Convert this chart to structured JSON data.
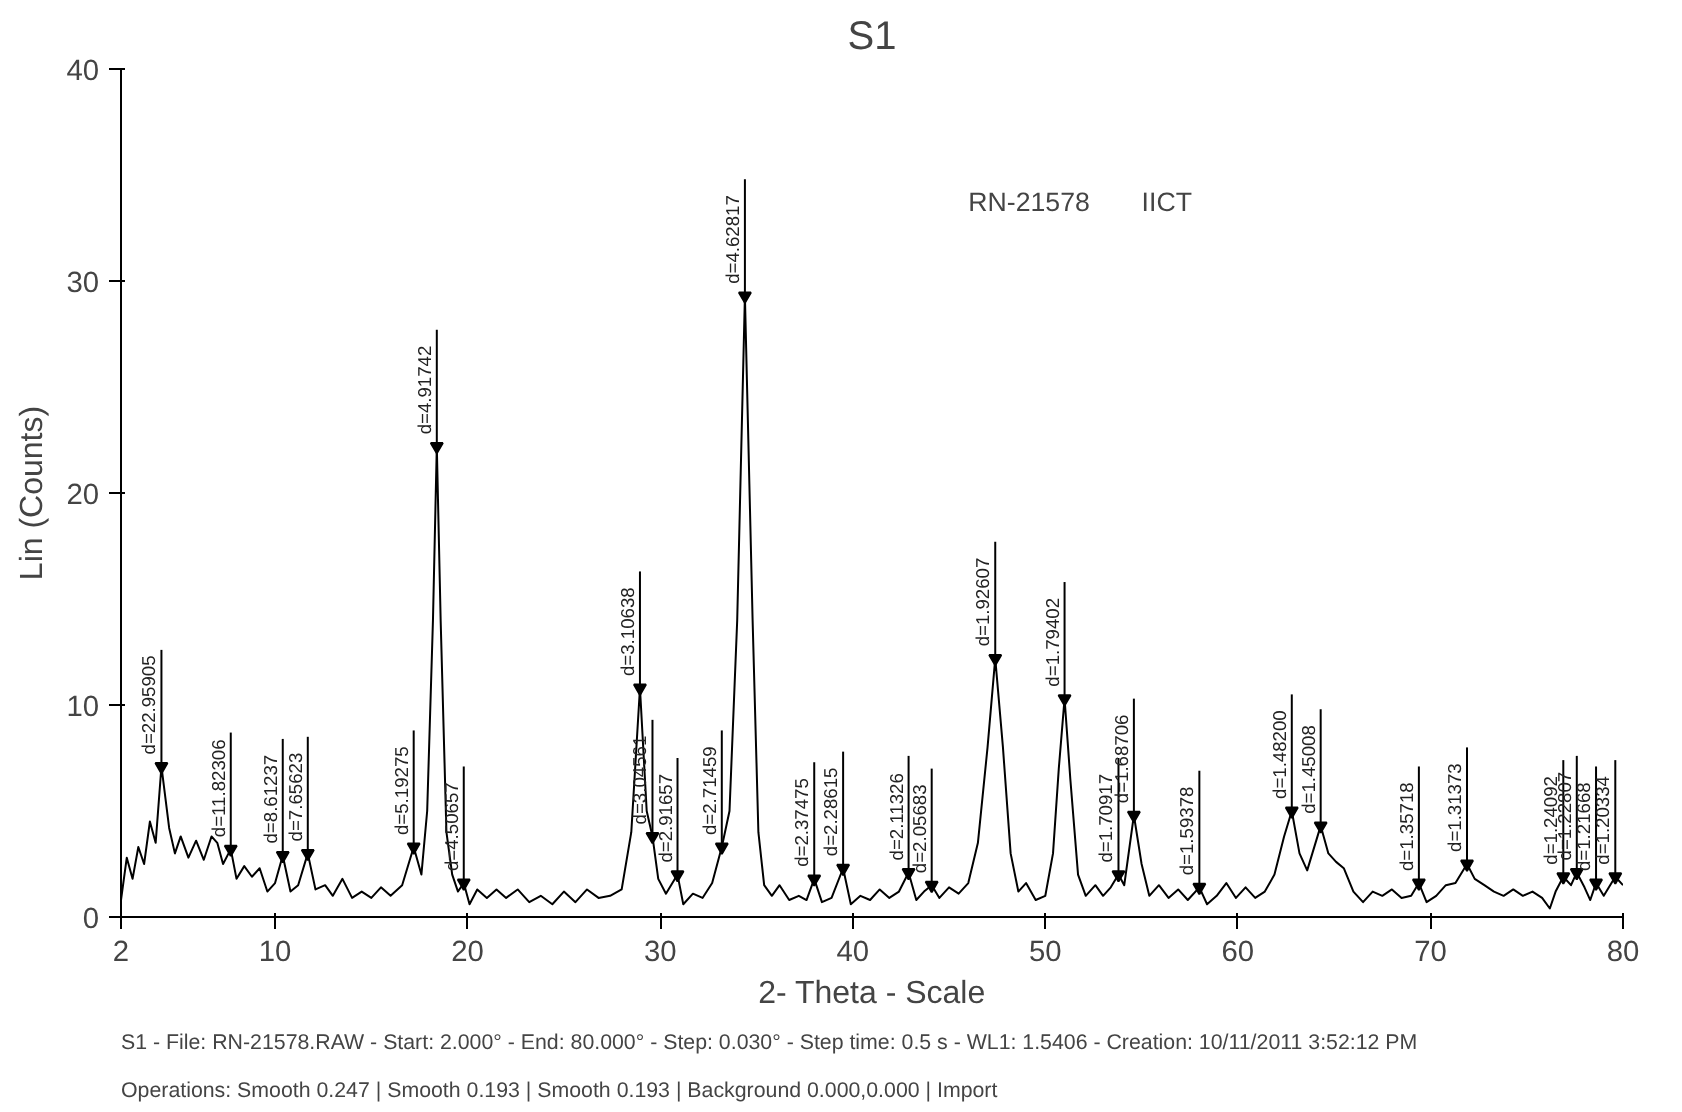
{
  "chart_data": {
    "type": "line",
    "title": "S1",
    "xlabel": "2- Theta - Scale",
    "ylabel": "Lin (Counts)",
    "xlim": [
      2,
      80
    ],
    "xticks": [
      2,
      10,
      20,
      30,
      40,
      50,
      60,
      70,
      80
    ],
    "ylim": [
      0,
      40
    ],
    "yticks": [
      0,
      10,
      20,
      30,
      40
    ],
    "marker": "none",
    "line_style": "solid",
    "series": [
      {
        "color": "#000000",
        "x": [
          2.0,
          2.3,
          2.6,
          2.9,
          3.2,
          3.5,
          3.8,
          4.1,
          4.5,
          4.8,
          5.1,
          5.5,
          5.9,
          6.3,
          6.7,
          7.0,
          7.3,
          7.7,
          8.0,
          8.4,
          8.8,
          9.2,
          9.6,
          10.0,
          10.4,
          10.8,
          11.2,
          11.7,
          12.1,
          12.6,
          13.0,
          13.5,
          14.0,
          14.5,
          15.0,
          15.5,
          16.0,
          16.6,
          17.2,
          17.6,
          17.9,
          18.2,
          18.4,
          18.6,
          18.9,
          19.2,
          19.5,
          19.8,
          20.1,
          20.5,
          21.0,
          21.5,
          22.0,
          22.6,
          23.2,
          23.8,
          24.4,
          25.0,
          25.6,
          26.2,
          26.8,
          27.4,
          28.0,
          28.5,
          28.95,
          29.3,
          29.6,
          29.9,
          30.3,
          30.9,
          31.2,
          31.7,
          32.2,
          32.7,
          33.2,
          33.6,
          34.0,
          34.4,
          34.8,
          35.1,
          35.4,
          35.8,
          36.2,
          36.7,
          37.2,
          37.6,
          38.0,
          38.4,
          38.9,
          39.5,
          39.9,
          40.4,
          40.9,
          41.4,
          41.9,
          42.4,
          42.9,
          43.3,
          43.7,
          44.1,
          44.5,
          45.0,
          45.5,
          46.0,
          46.5,
          47.0,
          47.4,
          47.8,
          48.2,
          48.6,
          49.0,
          49.5,
          50.0,
          50.4,
          50.7,
          51.0,
          51.3,
          51.7,
          52.1,
          52.6,
          53.0,
          53.4,
          53.8,
          54.1,
          54.6,
          55.0,
          55.4,
          55.9,
          56.4,
          56.9,
          57.4,
          58.0,
          58.4,
          58.9,
          59.4,
          59.9,
          60.4,
          60.9,
          61.4,
          61.9,
          62.4,
          62.8,
          63.2,
          63.6,
          64.3,
          64.7,
          65.1,
          65.5,
          66.0,
          66.5,
          67.0,
          67.5,
          68.0,
          68.5,
          69.0,
          69.4,
          69.8,
          70.3,
          70.8,
          71.3,
          71.9,
          72.3,
          72.8,
          73.3,
          73.8,
          74.3,
          74.8,
          75.3,
          75.8,
          76.2,
          76.5,
          76.9,
          77.3,
          77.6,
          78.0,
          78.3,
          78.6,
          79.0,
          79.6,
          80.0
        ],
        "values": [
          0.8,
          2.8,
          1.8,
          3.3,
          2.5,
          4.5,
          3.5,
          7.1,
          4.2,
          3.0,
          3.8,
          2.8,
          3.6,
          2.7,
          3.8,
          3.5,
          2.5,
          3.2,
          1.8,
          2.4,
          1.9,
          2.3,
          1.2,
          1.6,
          2.9,
          1.2,
          1.5,
          3.0,
          1.3,
          1.5,
          1.0,
          1.8,
          0.9,
          1.2,
          0.9,
          1.4,
          1.0,
          1.5,
          3.3,
          2.0,
          5.0,
          14.0,
          22.2,
          14.0,
          4.0,
          2.0,
          1.2,
          1.6,
          0.6,
          1.3,
          0.9,
          1.3,
          0.9,
          1.3,
          0.7,
          1.0,
          0.6,
          1.2,
          0.7,
          1.3,
          0.9,
          1.0,
          1.3,
          4.0,
          10.8,
          5.0,
          3.8,
          1.8,
          1.1,
          2.0,
          0.6,
          1.1,
          0.9,
          1.6,
          3.3,
          5.0,
          14.0,
          29.3,
          14.0,
          4.0,
          1.5,
          1.0,
          1.5,
          0.8,
          1.0,
          0.8,
          1.8,
          0.7,
          0.9,
          2.3,
          0.6,
          1.0,
          0.8,
          1.3,
          0.9,
          1.2,
          2.1,
          0.8,
          1.2,
          1.5,
          0.9,
          1.4,
          1.1,
          1.6,
          3.5,
          8.0,
          12.2,
          8.0,
          3.0,
          1.2,
          1.6,
          0.8,
          1.0,
          3.0,
          7.0,
          10.3,
          6.5,
          2.0,
          1.0,
          1.5,
          1.0,
          1.4,
          2.0,
          1.5,
          4.8,
          2.5,
          1.0,
          1.5,
          0.9,
          1.3,
          0.8,
          1.4,
          0.6,
          1.0,
          1.6,
          0.9,
          1.4,
          0.9,
          1.2,
          2.0,
          3.8,
          5.0,
          3.0,
          2.2,
          4.3,
          3.0,
          2.6,
          2.3,
          1.2,
          0.7,
          1.2,
          1.0,
          1.3,
          0.9,
          1.0,
          1.6,
          0.7,
          1.0,
          1.5,
          1.6,
          2.5,
          1.8,
          1.5,
          1.2,
          1.0,
          1.3,
          1.0,
          1.2,
          0.9,
          0.4,
          1.2,
          1.9,
          1.5,
          2.1,
          1.4,
          0.8,
          1.6,
          1.0,
          1.9,
          1.5
        ]
      }
    ],
    "annotations": [
      "RN-21578",
      "IICT",
      "S1 - File: RN-21578.RAW - Start: 2.000° - End: 80.000° - Step: 0.030° - Step time: 0.5 s - WL1: 1.5406 - Creation: 10/11/2011 3:52:12 PM",
      "Operations: Smooth 0.247 | Smooth 0.193 | Smooth 0.193 | Background 0.000,0.000 | Import",
      {
        "text": "d=22.95905",
        "x": 4.1,
        "y": 7.1
      },
      {
        "text": "d=11.82306",
        "x": 7.7,
        "y": 3.2
      },
      {
        "text": "d=8.61237",
        "x": 10.4,
        "y": 2.9
      },
      {
        "text": "d=7.65623",
        "x": 11.7,
        "y": 3.0
      },
      {
        "text": "d=5.19275",
        "x": 17.2,
        "y": 3.3
      },
      {
        "text": "d=4.91742",
        "x": 18.4,
        "y": 22.2
      },
      {
        "text": "d=4.50657",
        "x": 19.8,
        "y": 1.6
      },
      {
        "text": "d=3.10638",
        "x": 28.95,
        "y": 10.8
      },
      {
        "text": "d=3.04561",
        "x": 29.6,
        "y": 3.8
      },
      {
        "text": "d=2.91657",
        "x": 30.9,
        "y": 2.0
      },
      {
        "text": "d=2.71459",
        "x": 33.2,
        "y": 3.3
      },
      {
        "text": "d=4.62817",
        "x": 34.4,
        "y": 29.3
      },
      {
        "text": "d=2.37475",
        "x": 38.0,
        "y": 1.8
      },
      {
        "text": "d=2.28615",
        "x": 39.5,
        "y": 2.3
      },
      {
        "text": "d=2.11326",
        "x": 42.9,
        "y": 2.1
      },
      {
        "text": "d=2.05683",
        "x": 44.1,
        "y": 1.5
      },
      {
        "text": "d=1.92607",
        "x": 47.4,
        "y": 12.2
      },
      {
        "text": "d=1.79402",
        "x": 51.0,
        "y": 10.3
      },
      {
        "text": "d=1.70917",
        "x": 53.8,
        "y": 2.0
      },
      {
        "text": "d=1.68706",
        "x": 54.6,
        "y": 4.8
      },
      {
        "text": "d=1.59378",
        "x": 58.0,
        "y": 1.4
      },
      {
        "text": "d=1.48200",
        "x": 62.8,
        "y": 5.0
      },
      {
        "text": "d=1.45008",
        "x": 64.3,
        "y": 4.3
      },
      {
        "text": "d=1.35718",
        "x": 69.4,
        "y": 1.6
      },
      {
        "text": "d=1.31373",
        "x": 71.9,
        "y": 2.5
      },
      {
        "text": "d=1.24092",
        "x": 76.9,
        "y": 1.9
      },
      {
        "text": "d=1.22807",
        "x": 77.6,
        "y": 2.1
      },
      {
        "text": "d=1.21668",
        "x": 78.6,
        "y": 1.6
      },
      {
        "text": "d=1.20334",
        "x": 79.6,
        "y": 1.9
      }
    ]
  }
}
